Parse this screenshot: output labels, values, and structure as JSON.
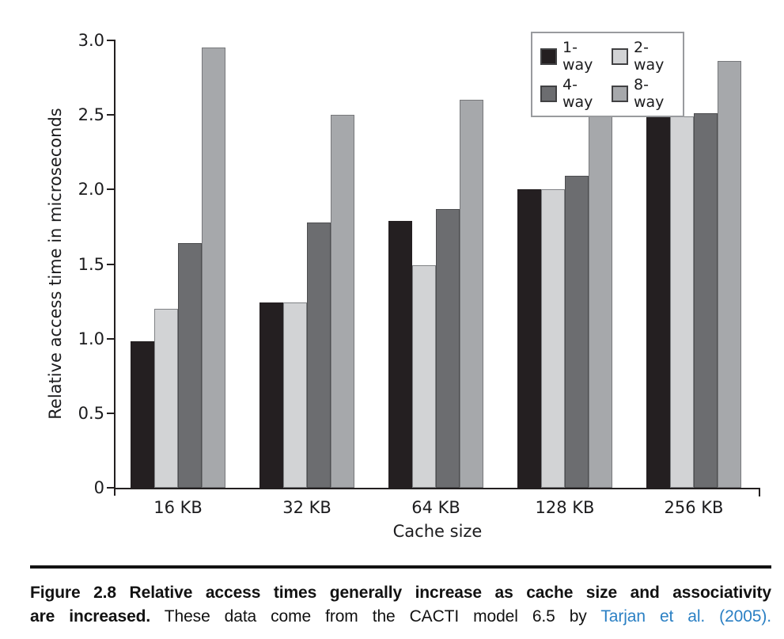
{
  "figure": {
    "caption": {
      "line1": {
        "figure_label": "Figure 2.8",
        "bold_rest": "Relative access times generally increase as cache size and associativity"
      },
      "line2": {
        "bold": "are increased.",
        "body": "These data come from the CACTI model 6.5 by",
        "link": "Tarjan et al. (2005)."
      }
    }
  },
  "chart_data": {
    "type": "bar",
    "title": "",
    "xlabel": "Cache size",
    "ylabel": "Relative access time in microseconds",
    "categories": [
      "16 KB",
      "32 KB",
      "64 KB",
      "128 KB",
      "256 KB"
    ],
    "series": [
      {
        "name": "1-way",
        "color": "#241f21",
        "border": "#241f21",
        "values": [
          0.98,
          1.24,
          1.79,
          2.0,
          2.49
        ]
      },
      {
        "name": "2-way",
        "color": "#d2d3d5",
        "border": "#808285",
        "values": [
          1.2,
          1.24,
          1.49,
          2.0,
          2.49
        ]
      },
      {
        "name": "4-way",
        "color": "#6c6d70",
        "border": "#4d4e50",
        "values": [
          1.64,
          1.78,
          1.87,
          2.09,
          2.51
        ]
      },
      {
        "name": "8-way",
        "color": "#a6a8ab",
        "border": "#77787b",
        "values": [
          2.95,
          2.5,
          2.6,
          2.56,
          2.86
        ]
      }
    ],
    "ylim": [
      0,
      3.0
    ],
    "y_ticks": [
      {
        "label": "0",
        "value": 0.0
      },
      {
        "label": "0.5",
        "value": 0.5
      },
      {
        "label": "1.0",
        "value": 1.0
      },
      {
        "label": "1.5",
        "value": 1.5
      },
      {
        "label": "2.0",
        "value": 2.0
      },
      {
        "label": "2.5",
        "value": 2.5
      },
      {
        "label": "3.0",
        "value": 3.0
      }
    ],
    "grid": false,
    "legend_position": "top-right"
  }
}
